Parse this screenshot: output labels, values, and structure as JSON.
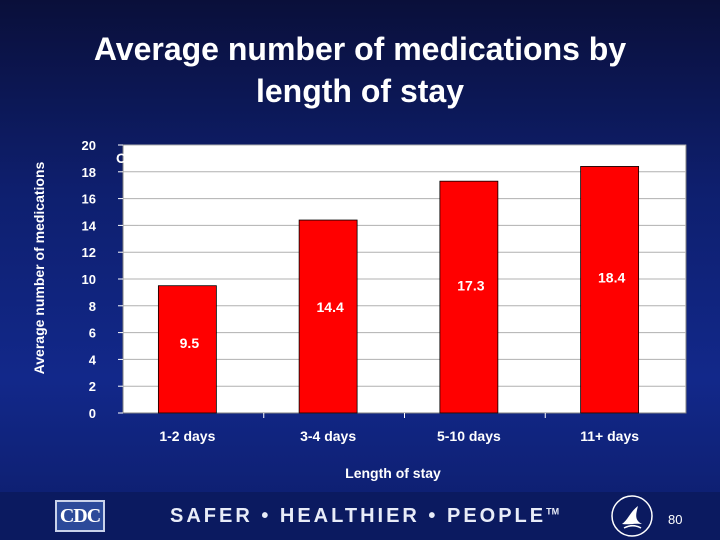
{
  "slide": {
    "title": "Average number of medications by\nlength of stay",
    "page_number": "80"
  },
  "footer": {
    "logo_text": "CDC",
    "tagline": "SAFER • HEALTHIER • PEOPLE",
    "tagline_mark": "TM",
    "seal_icon": "hhs-eagle-seal-icon"
  },
  "chart_data": {
    "type": "bar",
    "title": "",
    "categories": [
      "1-2 days",
      "3-4 days",
      "5-10 days",
      "11+ days"
    ],
    "values": [
      9.5,
      14.4,
      17.3,
      18.4
    ],
    "data_labels": [
      "9.5",
      "14.4",
      "17.3",
      "18.4"
    ],
    "xlabel": "Length of stay",
    "ylabel": "Average number of medications",
    "ylim": [
      0,
      20
    ],
    "yticks": [
      "0",
      "2",
      "4",
      "6",
      "8",
      "10",
      "12",
      "14",
      "16",
      "18",
      "20"
    ],
    "annotation": "Overall: 13.6 medications",
    "grid": true,
    "legend": "none",
    "colors": {
      "bar": "#ff0000",
      "plot_background": "#ffffff",
      "text": "#ffffff"
    }
  }
}
